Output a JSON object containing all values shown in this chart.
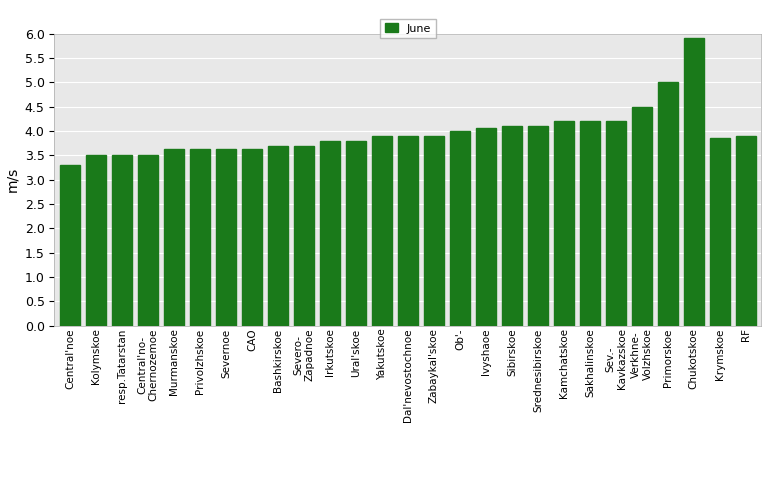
{
  "categories": [
    "Central'noe",
    "Kolymskoe",
    "resp.Tatarstan",
    "Central'no-\nChernozemoe",
    "Murmanskoe",
    "Privolzhskoe",
    "Severnoe",
    "CAO",
    "Bashkirskoe",
    "Severo-\nZapadnoe",
    "Irkutskoe",
    "Ural'skoe",
    "Yakutskoe",
    "Dal'nevostochnoe",
    "Zabaykal'skoe",
    "Ob'-",
    "Ivyshaoe",
    "Sibirskoe",
    "Srednesibirskoe",
    "Kamchatskoe",
    "Sakhalinskoe",
    "Sev.-\nKavkazskoe",
    "Verkhne-\nVolzhskoe",
    "Primorskoe",
    "Chukotskoe",
    "Krymskoe",
    "RF"
  ],
  "values": [
    3.3,
    3.5,
    3.5,
    3.5,
    3.62,
    3.62,
    3.62,
    3.62,
    3.7,
    3.7,
    3.8,
    3.8,
    3.9,
    3.9,
    3.9,
    4.0,
    4.05,
    4.1,
    4.1,
    4.2,
    4.2,
    4.2,
    4.5,
    5.0,
    5.9,
    3.85,
    3.9
  ],
  "bar_color": "#1a7a1a",
  "ylabel": "m/s",
  "ylim": [
    0,
    6
  ],
  "yticks": [
    0,
    0.5,
    1.0,
    1.5,
    2.0,
    2.5,
    3.0,
    3.5,
    4.0,
    4.5,
    5.0,
    5.5,
    6.0
  ],
  "legend_label": "June",
  "legend_color": "#1a7a1a",
  "bg_color": "#e8e8e8",
  "fig_bg_color": "#ffffff",
  "title_fontsize": 9,
  "label_fontsize": 7.5
}
